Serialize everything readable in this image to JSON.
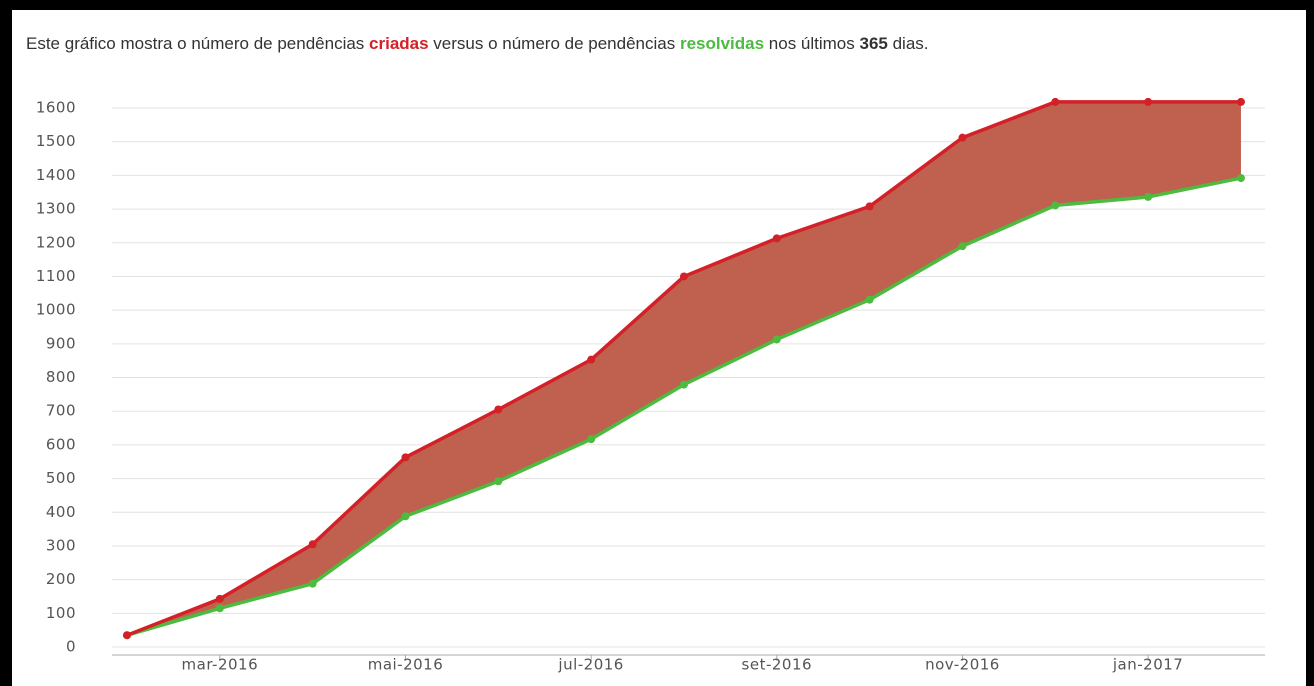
{
  "header": {
    "parts": [
      "Este gráfico mostra o número de pendências ",
      "criadas",
      " versus o número de pendências ",
      "resolvidas",
      " nos últimos ",
      "365",
      " dias."
    ]
  },
  "chart_data": {
    "type": "line",
    "categories": [
      null,
      "mar-2016",
      null,
      "mai-2016",
      null,
      "jul-2016",
      null,
      "set-2016",
      null,
      "nov-2016",
      null,
      "jan-2017",
      null
    ],
    "series": [
      {
        "name": "criadas",
        "color": "#d42027",
        "values": [
          35,
          143,
          305,
          563,
          705,
          853,
          1100,
          1213,
          1308,
          1512,
          1618,
          1618,
          1618
        ]
      },
      {
        "name": "resolvidas",
        "color": "#4cbb3f",
        "values": [
          35,
          115,
          188,
          388,
          492,
          617,
          779,
          913,
          1031,
          1190,
          1311,
          1336,
          1392
        ]
      }
    ],
    "area_between_color": "#c0604f",
    "ylim": [
      0,
      1600
    ],
    "yticks": [
      0,
      100,
      200,
      300,
      400,
      500,
      600,
      700,
      800,
      900,
      1000,
      1100,
      1200,
      1300,
      1400,
      1500,
      1600
    ],
    "grid": true
  }
}
